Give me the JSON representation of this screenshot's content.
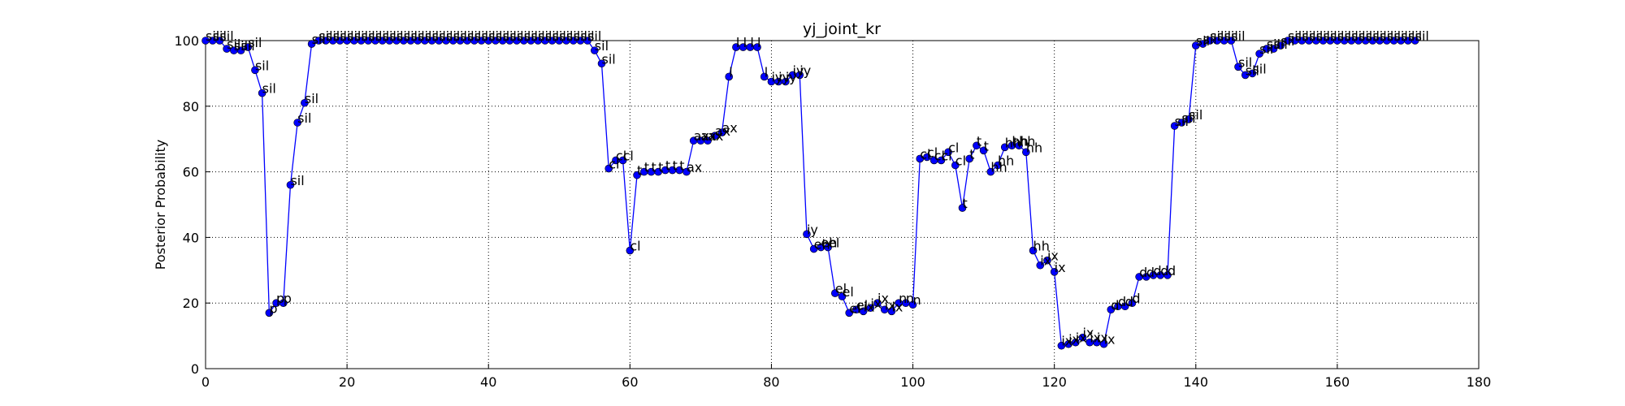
{
  "chart_data": {
    "type": "line",
    "title": "yj_joint_kr",
    "y_label": "Posterior Probability",
    "color": "#0000ff",
    "grid": true,
    "xlim": [
      0,
      180
    ],
    "ylim": [
      0,
      100
    ],
    "xticks": [
      0,
      20,
      40,
      60,
      80,
      100,
      120,
      140,
      160,
      180
    ],
    "yticks": [
      0,
      20,
      40,
      60,
      80,
      100
    ],
    "x": [
      0,
      1,
      2,
      3,
      4,
      5,
      6,
      7,
      8,
      9,
      10,
      11,
      12,
      13,
      14,
      15,
      16,
      17,
      18,
      19,
      20,
      21,
      22,
      23,
      24,
      25,
      26,
      27,
      28,
      29,
      30,
      31,
      32,
      33,
      34,
      35,
      36,
      37,
      38,
      39,
      40,
      41,
      42,
      43,
      44,
      45,
      46,
      47,
      48,
      49,
      50,
      51,
      52,
      53,
      54,
      55,
      56,
      57,
      58,
      59,
      60,
      61,
      62,
      63,
      64,
      65,
      66,
      67,
      68,
      69,
      70,
      71,
      72,
      73,
      74,
      75,
      76,
      77,
      78,
      79,
      80,
      81,
      82,
      83,
      84,
      85,
      86,
      87,
      88,
      89,
      90,
      91,
      92,
      93,
      94,
      95,
      96,
      97,
      98,
      99,
      100,
      101,
      102,
      103,
      104,
      105,
      106,
      107,
      108,
      109,
      110,
      111,
      112,
      113,
      114,
      115,
      116,
      117,
      118,
      119,
      120,
      121,
      122,
      123,
      124,
      125,
      126,
      127,
      128,
      129,
      130,
      131,
      132,
      133,
      134,
      135,
      136,
      137,
      138,
      139,
      140,
      141,
      142,
      143,
      144,
      145,
      146,
      147,
      148,
      149,
      150,
      151,
      152,
      153,
      154,
      155,
      156,
      157,
      158,
      159,
      160,
      161,
      162,
      163,
      164,
      165,
      166,
      167,
      168,
      169,
      170,
      171
    ],
    "values": [
      100,
      100,
      100,
      97.5,
      97,
      97,
      98,
      91,
      84,
      17,
      20,
      20,
      56,
      75,
      81,
      99,
      100,
      100,
      100,
      100,
      100,
      100,
      100,
      100,
      100,
      100,
      100,
      100,
      100,
      100,
      100,
      100,
      100,
      100,
      100,
      100,
      100,
      100,
      100,
      100,
      100,
      100,
      100,
      100,
      100,
      100,
      100,
      100,
      100,
      100,
      100,
      100,
      100,
      100,
      100,
      97,
      93,
      61,
      63.5,
      63.5,
      36,
      59,
      60,
      60,
      60,
      60.5,
      60.5,
      60.5,
      60,
      69.5,
      69.5,
      69.5,
      71,
      72,
      89,
      98,
      98,
      98,
      98,
      89,
      87.5,
      87.5,
      87.5,
      89.5,
      89.5,
      41,
      36.5,
      37,
      37,
      23,
      22,
      17,
      18,
      17.5,
      18.5,
      20,
      18,
      17.5,
      20,
      20,
      19.5,
      64,
      64.5,
      63.5,
      63.5,
      66,
      62,
      49,
      64,
      68,
      66.5,
      60,
      62,
      67.5,
      68,
      68,
      66,
      36,
      31.5,
      33,
      29.5,
      7,
      7.5,
      8,
      9.5,
      8,
      8,
      7.5,
      18,
      19,
      19,
      20,
      28,
      28,
      28.5,
      28.5,
      28.5,
      74,
      75,
      76,
      98.5,
      99,
      100,
      100,
      100,
      100,
      92,
      89.5,
      90,
      96,
      97.5,
      97.5,
      98.5,
      100,
      100,
      100,
      100,
      100,
      100,
      100,
      100,
      100,
      100,
      100,
      100,
      100,
      100,
      100,
      100,
      100,
      100,
      100
    ],
    "point_labels": [
      "sil",
      "sil",
      "sil",
      "sil",
      "sil",
      "sil",
      "sil",
      "sil",
      "sil",
      "p",
      "p",
      "p",
      "sil",
      "sil",
      "sil",
      "sil",
      "sil",
      "sil",
      "sil",
      "sil",
      "sil",
      "sil",
      "sil",
      "sil",
      "sil",
      "sil",
      "sil",
      "sil",
      "sil",
      "sil",
      "sil",
      "sil",
      "sil",
      "sil",
      "sil",
      "sil",
      "sil",
      "sil",
      "sil",
      "sil",
      "sil",
      "sil",
      "sil",
      "sil",
      "sil",
      "sil",
      "sil",
      "sil",
      "sil",
      "sil",
      "sil",
      "sil",
      "sil",
      "sil",
      "sil",
      "sil",
      "sil",
      "cl",
      "cl",
      "cl",
      "cl",
      "t",
      "t",
      "t",
      "t",
      "t",
      "t",
      "t",
      "ax",
      "ax",
      "ax",
      "ax",
      "ax",
      "ax",
      "l",
      "l",
      "l",
      "l",
      "l",
      "l",
      "iy",
      "iy",
      "iy",
      "iy",
      "iy",
      "iy",
      "eh",
      "eh",
      "el",
      "el",
      "el",
      "el",
      "el",
      "ix",
      "ix",
      "ix",
      "ix",
      "ix",
      "n",
      "n",
      "n",
      "cl",
      "cl",
      "cl",
      "cl",
      "cl",
      "cl",
      "t",
      "t",
      "t",
      "t",
      "hh",
      "hh",
      "hh",
      "hh",
      "hh",
      "hh",
      "hh",
      "ix",
      "ix",
      "ix",
      "ix",
      "ix",
      "ix",
      "ix",
      "ix",
      "ix",
      "ix",
      "d",
      "d",
      "d",
      "d",
      "d",
      "d",
      "d",
      "d",
      "d",
      "sil",
      "sil",
      "sil",
      "sil",
      "sil",
      "sil",
      "sil",
      "sil",
      "sil",
      "sil",
      "sil",
      "sil",
      "sil",
      "sil",
      "sil",
      "sil",
      "sil",
      "sil",
      "sil",
      "sil",
      "sil",
      "sil",
      "sil",
      "sil",
      "sil",
      "sil",
      "sil",
      "sil",
      "sil",
      "sil",
      "sil",
      "sil",
      "sil",
      "sil",
      "sil"
    ]
  }
}
